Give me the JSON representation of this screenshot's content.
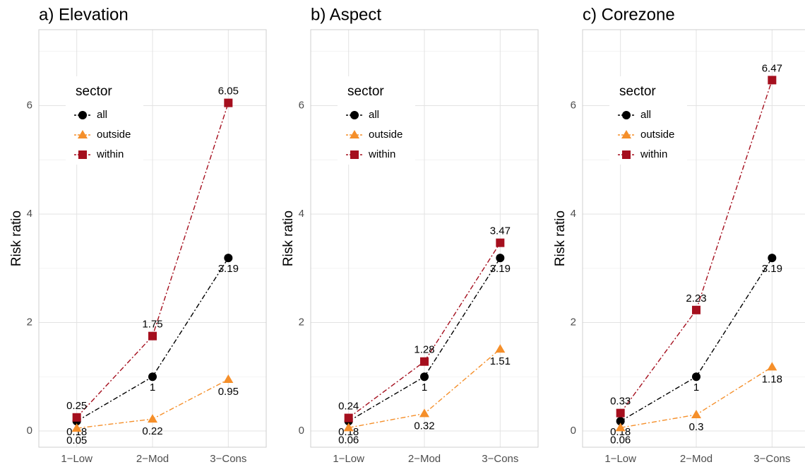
{
  "chart_data": [
    {
      "type": "line",
      "title": "a) Elevation",
      "ylabel": "Risk ratio",
      "legend_title": "sector",
      "categories": [
        "1−Low",
        "2−Mod",
        "3−Cons"
      ],
      "ylim": [
        -0.3,
        7.4
      ],
      "yticks": [
        0,
        2,
        4,
        6
      ],
      "minor_yticks": [
        1,
        3,
        5,
        7
      ],
      "grid": true,
      "legend": "top-left",
      "series": [
        {
          "name": "all",
          "color": "#000000",
          "marker": "circle",
          "values": [
            0.18,
            1,
            3.19
          ]
        },
        {
          "name": "outside",
          "color": "#f58f2a",
          "marker": "triangle",
          "values": [
            0.05,
            0.22,
            0.95
          ]
        },
        {
          "name": "within",
          "color": "#a50f1e",
          "marker": "square",
          "values": [
            0.25,
            1.75,
            6.05
          ]
        }
      ]
    },
    {
      "type": "line",
      "title": "b) Aspect",
      "ylabel": "Risk ratio",
      "legend_title": "sector",
      "categories": [
        "1−Low",
        "2−Mod",
        "3−Cons"
      ],
      "ylim": [
        -0.3,
        7.4
      ],
      "yticks": [
        0,
        2,
        4,
        6
      ],
      "minor_yticks": [
        1,
        3,
        5,
        7
      ],
      "grid": true,
      "legend": "top-left",
      "series": [
        {
          "name": "all",
          "color": "#000000",
          "marker": "circle",
          "values": [
            0.18,
            1,
            3.19
          ]
        },
        {
          "name": "outside",
          "color": "#f58f2a",
          "marker": "triangle",
          "values": [
            0.06,
            0.32,
            1.51
          ]
        },
        {
          "name": "within",
          "color": "#a50f1e",
          "marker": "square",
          "values": [
            0.24,
            1.28,
            3.47
          ]
        }
      ]
    },
    {
      "type": "line",
      "title": "c) Corezone",
      "ylabel": "Risk ratio",
      "legend_title": "sector",
      "categories": [
        "1−Low",
        "2−Mod",
        "3−Cons"
      ],
      "ylim": [
        -0.3,
        7.4
      ],
      "yticks": [
        0,
        2,
        4,
        6
      ],
      "minor_yticks": [
        1,
        3,
        5,
        7
      ],
      "grid": true,
      "legend": "top-left",
      "series": [
        {
          "name": "all",
          "color": "#000000",
          "marker": "circle",
          "values": [
            0.18,
            1,
            3.19
          ]
        },
        {
          "name": "outside",
          "color": "#f58f2a",
          "marker": "triangle",
          "values": [
            0.06,
            0.3,
            1.18
          ]
        },
        {
          "name": "within",
          "color": "#a50f1e",
          "marker": "square",
          "values": [
            0.33,
            2.23,
            6.47
          ]
        }
      ]
    }
  ]
}
